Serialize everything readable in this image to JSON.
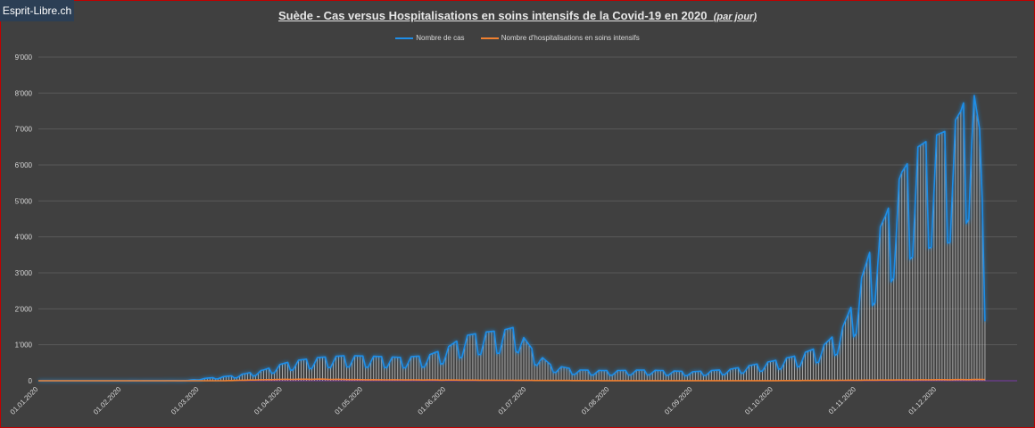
{
  "brand": "Esprit-Libre.ch",
  "chart_data": {
    "type": "line",
    "title": "Suède - Cas versus Hospitalisations en soins intensifs de la Covid-19 en 2020",
    "subtitle": "(par jour)",
    "y_ticks": [
      "0",
      "1'000",
      "2'000",
      "3'000",
      "4'000",
      "5'000",
      "6'000",
      "7'000",
      "8'000",
      "9'000"
    ],
    "ylim": [
      0,
      9000
    ],
    "x_ticks": [
      "01.01.2020",
      "01.02.2020",
      "01.03.2020",
      "01.04.2020",
      "01.05.2020",
      "01.06.2020",
      "01.07.2020",
      "01.08.2020",
      "01.09.2020",
      "01.10.2020",
      "01.11.2020",
      "01.12.2020"
    ],
    "x_start": "01.01.2020",
    "x_end": "31.12.2020",
    "grid": true,
    "legend_position": "top-center",
    "colors": {
      "cases": "#1f8ee8",
      "icu": "#f08030",
      "background": "#404040",
      "grid": "#595959",
      "text": "#d9d9d9",
      "bar": "#c8c8c8"
    },
    "series": [
      {
        "name": "Nombre de cas",
        "color": "#1f8ee8",
        "keypoints": [
          [
            "01.01.2020",
            0
          ],
          [
            "31.01.2020",
            0
          ],
          [
            "01.02.2020",
            1
          ],
          [
            "25.02.2020",
            5
          ],
          [
            "05.03.2020",
            80
          ],
          [
            "15.03.2020",
            150
          ],
          [
            "25.03.2020",
            300
          ],
          [
            "31.03.2020",
            450
          ],
          [
            "05.04.2020",
            550
          ],
          [
            "15.04.2020",
            650
          ],
          [
            "25.04.2020",
            700
          ],
          [
            "05.05.2020",
            680
          ],
          [
            "15.05.2020",
            650
          ],
          [
            "25.05.2020",
            700
          ],
          [
            "01.06.2020",
            900
          ],
          [
            "08.06.2020",
            1250
          ],
          [
            "15.06.2020",
            1350
          ],
          [
            "22.06.2020",
            1400
          ],
          [
            "27.06.2020",
            1500
          ],
          [
            "03.07.2020",
            900
          ],
          [
            "10.07.2020",
            450
          ],
          [
            "20.07.2020",
            300
          ],
          [
            "01.08.2020",
            280
          ],
          [
            "15.08.2020",
            300
          ],
          [
            "01.09.2020",
            250
          ],
          [
            "15.09.2020",
            320
          ],
          [
            "01.10.2020",
            550
          ],
          [
            "10.10.2020",
            700
          ],
          [
            "20.10.2020",
            1000
          ],
          [
            "27.10.2020",
            1500
          ],
          [
            "01.11.2020",
            2400
          ],
          [
            "07.11.2020",
            3800
          ],
          [
            "12.11.2020",
            4600
          ],
          [
            "18.11.2020",
            5800
          ],
          [
            "24.11.2020",
            6500
          ],
          [
            "30.11.2020",
            6800
          ],
          [
            "06.12.2020",
            7000
          ],
          [
            "10.12.2020",
            7500
          ],
          [
            "14.12.2020",
            8400
          ],
          [
            "17.12.2020",
            7000
          ],
          [
            "19.12.2020",
            3000
          ]
        ],
        "weekly_dip": 0.45
      },
      {
        "name": "Nombre d'hospitalisations en soins intensifs",
        "color": "#f08030",
        "keypoints": [
          [
            "01.01.2020",
            0
          ],
          [
            "10.03.2020",
            0
          ],
          [
            "20.03.2020",
            20
          ],
          [
            "01.04.2020",
            40
          ],
          [
            "15.04.2020",
            45
          ],
          [
            "01.05.2020",
            30
          ],
          [
            "01.06.2020",
            20
          ],
          [
            "01.07.2020",
            10
          ],
          [
            "01.08.2020",
            3
          ],
          [
            "01.09.2020",
            2
          ],
          [
            "01.10.2020",
            3
          ],
          [
            "01.11.2020",
            15
          ],
          [
            "01.12.2020",
            30
          ],
          [
            "19.12.2020",
            35
          ]
        ],
        "weekly_dip": 0.1
      }
    ]
  }
}
